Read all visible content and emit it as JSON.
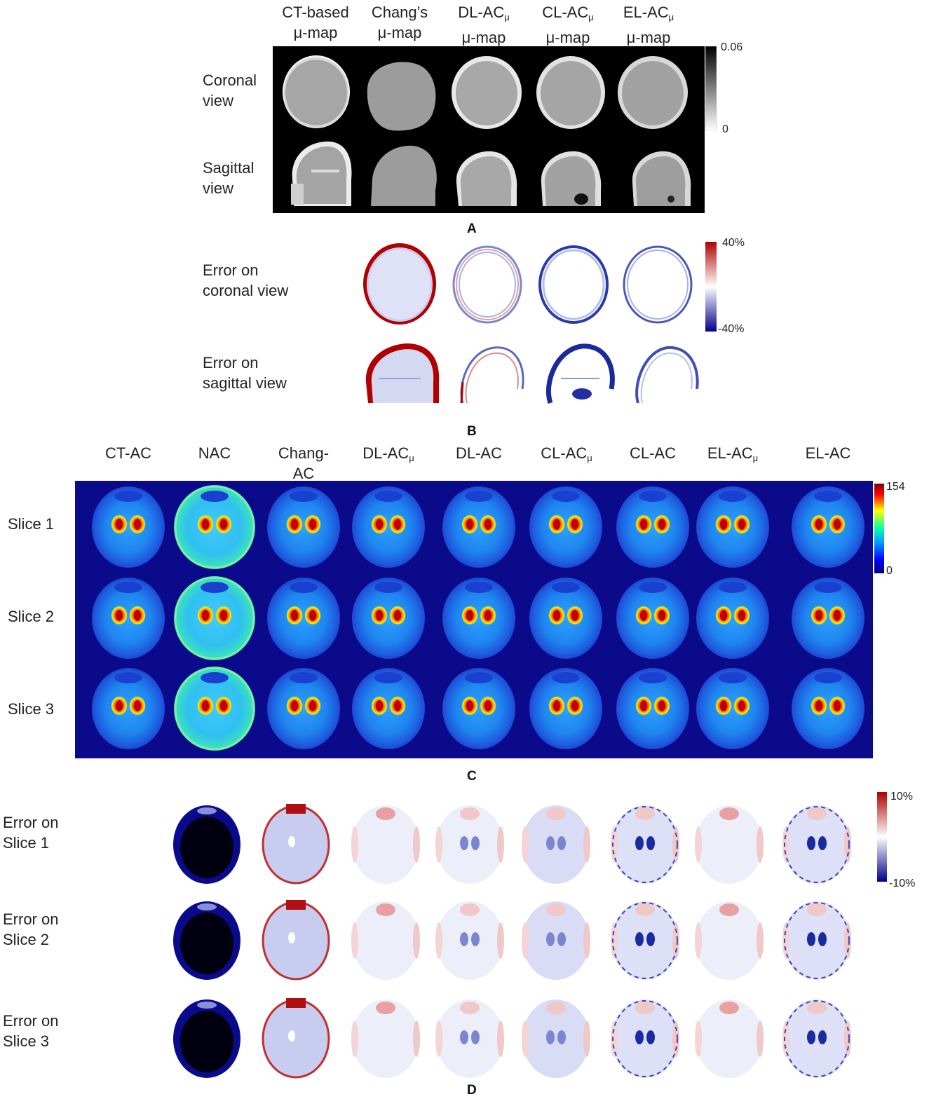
{
  "panelA": {
    "columns": [
      {
        "line1": "CT-based",
        "line2": "μ-map",
        "sub": ""
      },
      {
        "line1": "Chang’s",
        "line2": "μ-map",
        "sub": ""
      },
      {
        "line1": "DL-AC",
        "line2": "μ-map",
        "sub": "μ"
      },
      {
        "line1": "CL-AC",
        "line2": "μ-map",
        "sub": "μ"
      },
      {
        "line1": "EL-AC",
        "line2": "μ-map",
        "sub": "μ"
      }
    ],
    "rows": [
      {
        "line1": "Coronal",
        "line2": "view"
      },
      {
        "line1": "Sagittal",
        "line2": "view"
      }
    ],
    "colorbar": {
      "max": "0.06",
      "min": "0"
    },
    "letter": "A"
  },
  "panelB": {
    "rows": [
      {
        "line1": "Error on",
        "line2": "coronal view"
      },
      {
        "line1": "Error on",
        "line2": "sagittal view"
      }
    ],
    "colorbar": {
      "max": "40%",
      "min": "-40%"
    },
    "letter": "B"
  },
  "panelC": {
    "columns": [
      {
        "line1": "",
        "line2": "CT-AC",
        "sub": ""
      },
      {
        "line1": "",
        "line2": "NAC",
        "sub": ""
      },
      {
        "line1": "Chang-",
        "line2": "AC",
        "sub": ""
      },
      {
        "line1": "",
        "line2": "DL-AC",
        "sub": "μ"
      },
      {
        "line1": "",
        "line2": "DL-AC",
        "sub": ""
      },
      {
        "line1": "",
        "line2": "CL-AC",
        "sub": "μ"
      },
      {
        "line1": "",
        "line2": "CL-AC",
        "sub": ""
      },
      {
        "line1": "",
        "line2": "EL-AC",
        "sub": "μ"
      },
      {
        "line1": "",
        "line2": "EL-AC",
        "sub": ""
      }
    ],
    "rows": [
      "Slice 1",
      "Slice 2",
      "Slice 3"
    ],
    "colorbar": {
      "max": "154",
      "min": "0"
    },
    "letter": "C"
  },
  "panelD": {
    "rows": [
      {
        "line1": "Error on",
        "line2": "Slice 1"
      },
      {
        "line1": "Error on",
        "line2": "Slice 2"
      },
      {
        "line1": "Error on",
        "line2": "Slice 3"
      }
    ],
    "colorbar": {
      "max": "10%",
      "min": "-10%"
    },
    "letter": "D"
  },
  "colors": {
    "pet_background": "#0a0a8a",
    "error_positive": "#b00000",
    "error_negative": "#00008b",
    "mu_background": "#000000"
  }
}
